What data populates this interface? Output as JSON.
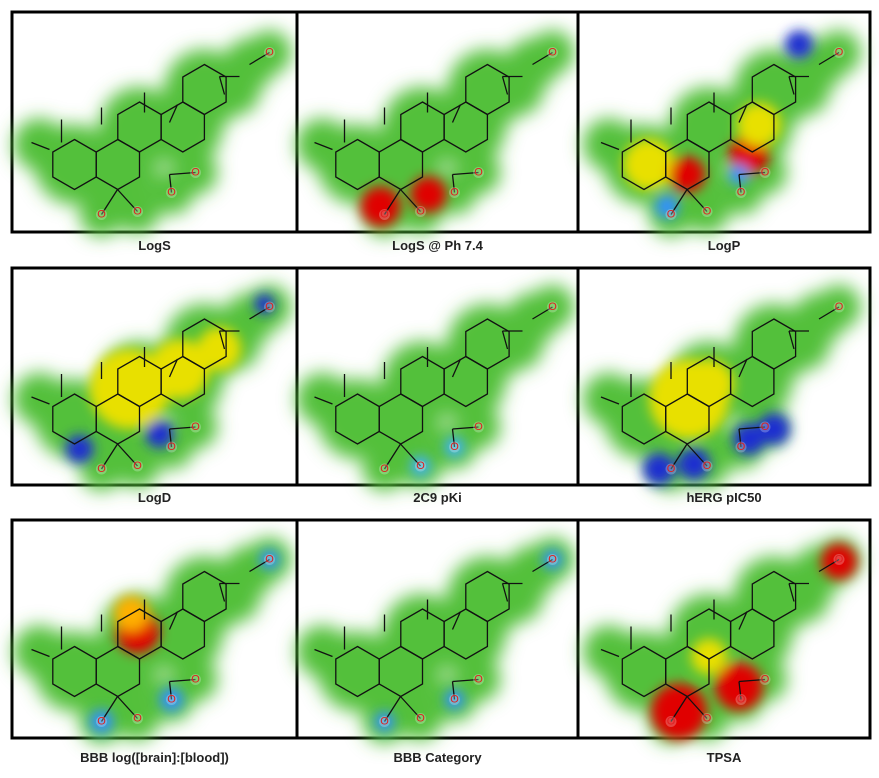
{
  "figure": {
    "atom_label": "O",
    "panels": [
      {
        "label": "LogS"
      },
      {
        "label": "LogS @ Ph 7.4"
      },
      {
        "label": "LogP"
      },
      {
        "label": "LogD"
      },
      {
        "label": "2C9 pKi"
      },
      {
        "label": "hERG pIC50"
      },
      {
        "label": "BBB log([brain]:[blood])"
      },
      {
        "label": "BBB Category"
      },
      {
        "label": "TPSA"
      }
    ]
  }
}
